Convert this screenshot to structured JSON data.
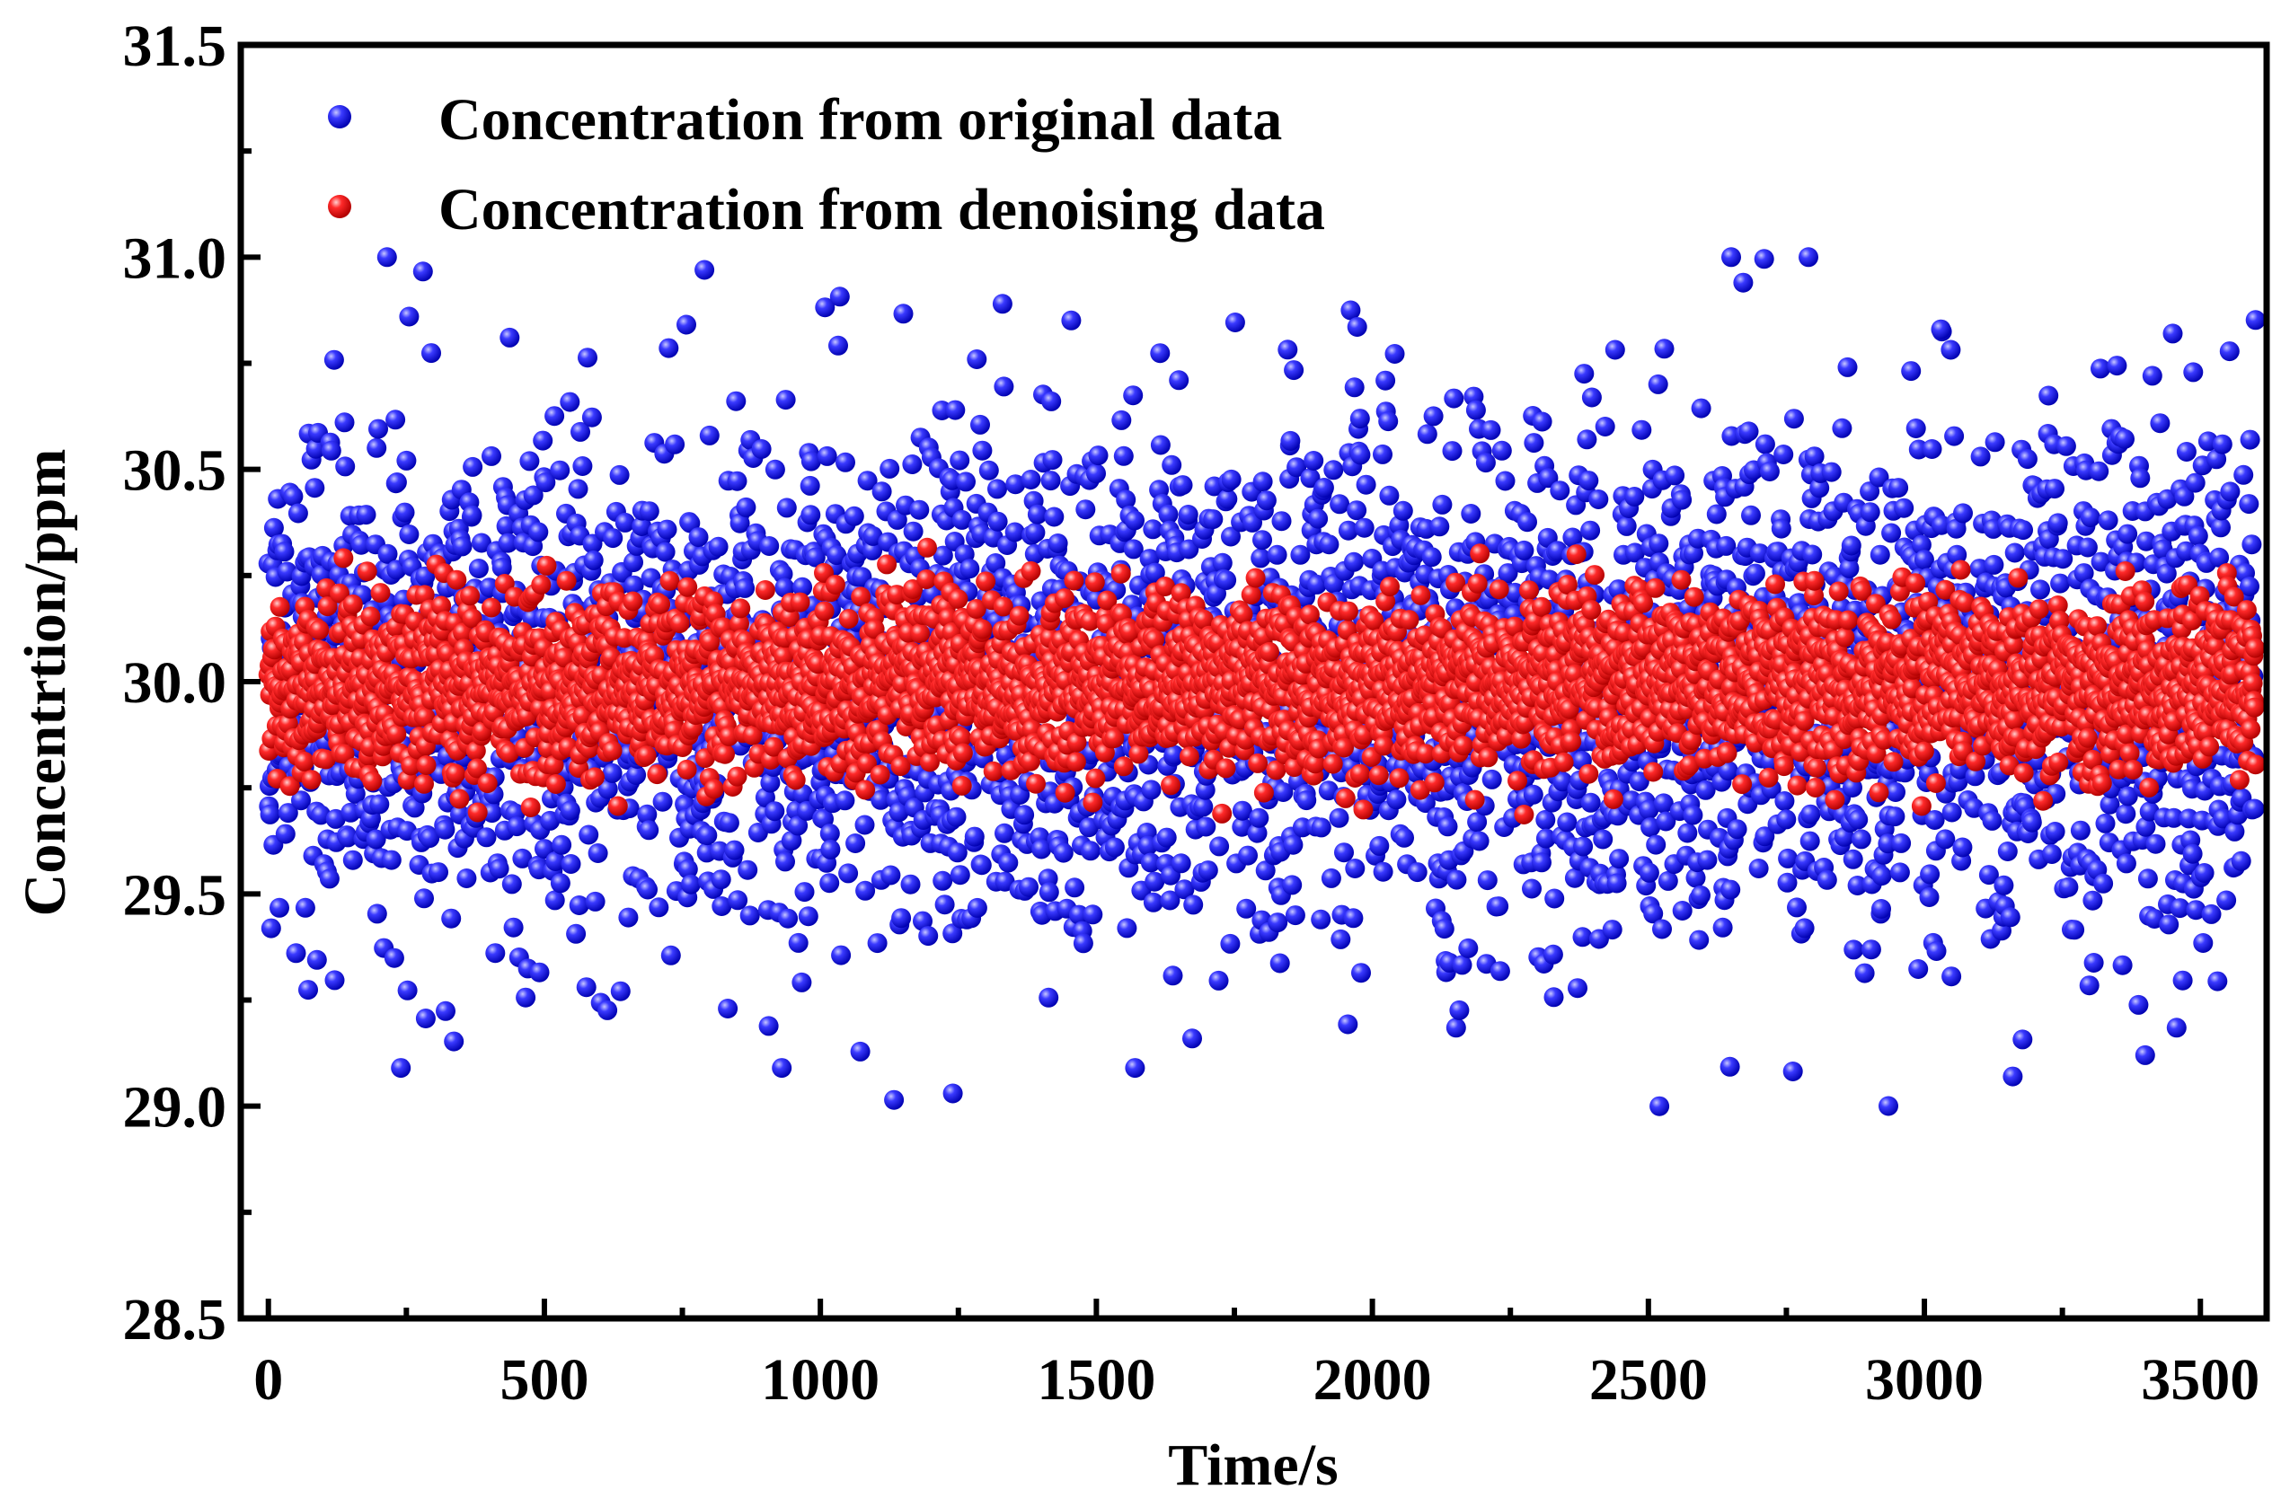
{
  "chart_data": {
    "type": "scatter",
    "title": "",
    "xlabel": "Time/s",
    "ylabel": "Concentrtion/ppm",
    "xlim": [
      -50,
      3620
    ],
    "ylim": [
      28.5,
      31.5
    ],
    "xticks": [
      0,
      500,
      1000,
      1500,
      2000,
      2500,
      3000,
      3500
    ],
    "xtick_labels": [
      "0",
      "500",
      "1000",
      "1500",
      "2000",
      "2500",
      "3000",
      "3500"
    ],
    "yticks": [
      28.5,
      29.0,
      29.5,
      30.0,
      30.5,
      31.0,
      31.5
    ],
    "ytick_labels": [
      "28.5",
      "29.0",
      "29.5",
      "30.0",
      "30.5",
      "31.0",
      "31.5"
    ],
    "grid": false,
    "legend_position": "top-left",
    "series": [
      {
        "name": "Concentration from original data",
        "color": "#1a1aff",
        "x_range": [
          0,
          3600
        ],
        "count": 3600,
        "mean": 30.0,
        "spread": 0.3,
        "min": 29.0,
        "max": 31.0,
        "notable_points": [
          {
            "x": 215,
            "y": 31.0
          },
          {
            "x": 240,
            "y": 29.09
          },
          {
            "x": 255,
            "y": 30.86
          },
          {
            "x": 790,
            "y": 30.97
          },
          {
            "x": 930,
            "y": 29.09
          },
          {
            "x": 1240,
            "y": 29.03
          },
          {
            "x": 1330,
            "y": 30.89
          },
          {
            "x": 1570,
            "y": 29.09
          },
          {
            "x": 2520,
            "y": 29.0
          },
          {
            "x": 2650,
            "y": 31.0
          },
          {
            "x": 2790,
            "y": 31.0
          },
          {
            "x": 3030,
            "y": 30.83
          },
          {
            "x": 3160,
            "y": 29.07
          },
          {
            "x": 3400,
            "y": 29.12
          },
          {
            "x": 3450,
            "y": 30.82
          }
        ]
      },
      {
        "name": "Concentration from denoising data",
        "color": "#ff1a1a",
        "x_range": [
          0,
          3600
        ],
        "count": 3600,
        "mean": 30.0,
        "spread": 0.1,
        "min": 29.68,
        "max": 30.34
      }
    ]
  }
}
